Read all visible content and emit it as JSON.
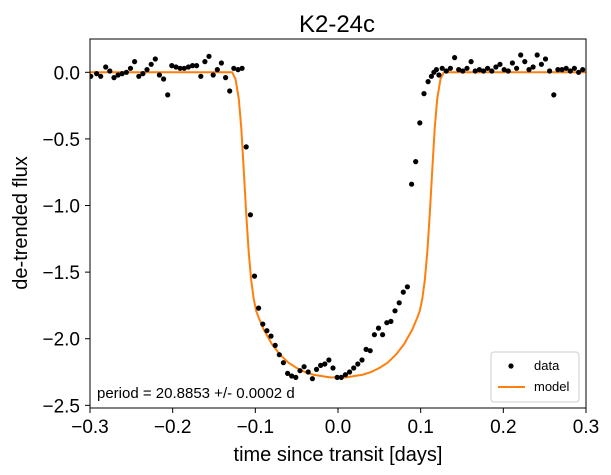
{
  "chart_data": {
    "type": "scatter",
    "title": "K2-24c",
    "xlabel": "time since transit [days]",
    "ylabel": "de-trended flux",
    "xlim": [
      -0.3,
      0.3
    ],
    "ylim": [
      -2.52,
      0.25
    ],
    "xticks": [
      -0.3,
      -0.2,
      -0.1,
      0.0,
      0.1,
      0.2,
      0.3
    ],
    "xtick_labels": [
      "−0.3",
      "−0.2",
      "−0.1",
      "0.0",
      "0.1",
      "0.2",
      "0.3"
    ],
    "yticks": [
      0.0,
      -0.5,
      -1.0,
      -1.5,
      -2.0,
      -2.5
    ],
    "ytick_labels": [
      "0.0",
      "−0.5",
      "−1.0",
      "−1.5",
      "−2.0",
      "−2.5"
    ],
    "grid": false,
    "legend": {
      "placement": "lower-right",
      "entries": [
        "data",
        "model"
      ]
    },
    "annotation": "period = 20.8853 +/- 0.0002 d",
    "colors": {
      "data": "#000000",
      "model": "#ff7f0e",
      "axes": "#000000"
    },
    "series": [
      {
        "name": "data",
        "type": "scatter",
        "x": [
          -0.299,
          -0.292,
          -0.287,
          -0.281,
          -0.276,
          -0.271,
          -0.266,
          -0.261,
          -0.256,
          -0.251,
          -0.246,
          -0.241,
          -0.236,
          -0.231,
          -0.226,
          -0.221,
          -0.216,
          -0.211,
          -0.206,
          -0.201,
          -0.196,
          -0.191,
          -0.186,
          -0.181,
          -0.176,
          -0.171,
          -0.166,
          -0.161,
          -0.156,
          -0.151,
          -0.146,
          -0.141,
          -0.136,
          -0.131,
          -0.126,
          -0.121,
          -0.116,
          -0.111,
          -0.106,
          -0.101,
          -0.096,
          -0.091,
          -0.086,
          -0.081,
          -0.076,
          -0.071,
          -0.066,
          -0.061,
          -0.056,
          -0.051,
          -0.046,
          -0.041,
          -0.036,
          -0.031,
          -0.026,
          -0.021,
          -0.016,
          -0.011,
          -0.006,
          -0.001,
          0.004,
          0.009,
          0.014,
          0.019,
          0.024,
          0.029,
          0.034,
          0.039,
          0.044,
          0.049,
          0.054,
          0.059,
          0.064,
          0.069,
          0.074,
          0.079,
          0.084,
          0.089,
          0.094,
          0.099,
          0.104,
          0.109,
          0.113,
          0.116,
          0.119,
          0.122,
          0.126,
          0.131,
          0.136,
          0.141,
          0.146,
          0.151,
          0.156,
          0.161,
          0.166,
          0.171,
          0.176,
          0.181,
          0.186,
          0.191,
          0.196,
          0.201,
          0.206,
          0.211,
          0.216,
          0.221,
          0.226,
          0.231,
          0.236,
          0.241,
          0.246,
          0.251,
          0.256,
          0.261,
          0.266,
          0.271,
          0.276,
          0.281,
          0.286,
          0.291,
          0.296
        ],
        "y": [
          -0.03,
          -0.01,
          -0.03,
          0.04,
          0.01,
          -0.04,
          -0.02,
          -0.01,
          0.0,
          0.03,
          0.08,
          -0.03,
          -0.01,
          0.02,
          0.06,
          0.1,
          -0.02,
          -0.05,
          -0.17,
          0.05,
          0.04,
          0.03,
          0.03,
          0.04,
          0.05,
          0.05,
          -0.03,
          0.08,
          0.12,
          -0.02,
          0.02,
          0.07,
          -0.04,
          -0.14,
          0.03,
          0.02,
          0.03,
          -0.56,
          -1.07,
          -1.53,
          -1.77,
          -1.89,
          -1.94,
          -1.98,
          -2.05,
          -2.12,
          -2.18,
          -2.26,
          -2.28,
          -2.29,
          -2.24,
          -2.21,
          -2.25,
          -2.3,
          -2.23,
          -2.2,
          -2.19,
          -2.16,
          -2.22,
          -2.29,
          -2.29,
          -2.27,
          -2.25,
          -2.22,
          -2.19,
          -2.16,
          -2.08,
          -2.09,
          -1.97,
          -1.92,
          -1.97,
          -1.88,
          -1.87,
          -1.79,
          -1.73,
          -1.65,
          -1.61,
          -0.84,
          -0.67,
          -0.38,
          -0.16,
          -0.07,
          -0.03,
          0.0,
          0.02,
          -0.02,
          0.03,
          0.01,
          0.03,
          0.11,
          0.02,
          0.01,
          0.03,
          0.08,
          0.01,
          0.02,
          0.01,
          0.03,
          0.01,
          0.04,
          0.06,
          0.02,
          0.01,
          0.07,
          0.03,
          0.13,
          0.08,
          0.02,
          0.04,
          0.13,
          0.06,
          0.1,
          0.01,
          -0.17,
          0.02,
          0.02,
          0.03,
          0.01,
          0.03,
          0.0,
          0.02
        ]
      },
      {
        "name": "model",
        "type": "line",
        "x": [
          -0.3,
          -0.2,
          -0.128,
          -0.124,
          -0.12,
          -0.117,
          -0.114,
          -0.111,
          -0.108,
          -0.105,
          -0.102,
          -0.099,
          -0.096,
          -0.09,
          -0.08,
          -0.07,
          -0.06,
          -0.05,
          -0.04,
          -0.03,
          -0.02,
          -0.01,
          0.0,
          0.01,
          0.02,
          0.03,
          0.04,
          0.05,
          0.06,
          0.07,
          0.08,
          0.09,
          0.096,
          0.099,
          0.102,
          0.105,
          0.108,
          0.111,
          0.114,
          0.117,
          0.12,
          0.124,
          0.128,
          0.2,
          0.3
        ],
        "y": [
          0.0,
          0.0,
          0.0,
          -0.05,
          -0.2,
          -0.42,
          -0.74,
          -1.06,
          -1.35,
          -1.56,
          -1.7,
          -1.79,
          -1.84,
          -1.93,
          -2.04,
          -2.12,
          -2.18,
          -2.22,
          -2.25,
          -2.27,
          -2.28,
          -2.29,
          -2.29,
          -2.29,
          -2.28,
          -2.27,
          -2.25,
          -2.22,
          -2.18,
          -2.12,
          -2.04,
          -1.93,
          -1.84,
          -1.79,
          -1.7,
          -1.56,
          -1.35,
          -1.06,
          -0.74,
          -0.42,
          -0.2,
          -0.05,
          0.0,
          0.0,
          0.0
        ]
      }
    ]
  }
}
